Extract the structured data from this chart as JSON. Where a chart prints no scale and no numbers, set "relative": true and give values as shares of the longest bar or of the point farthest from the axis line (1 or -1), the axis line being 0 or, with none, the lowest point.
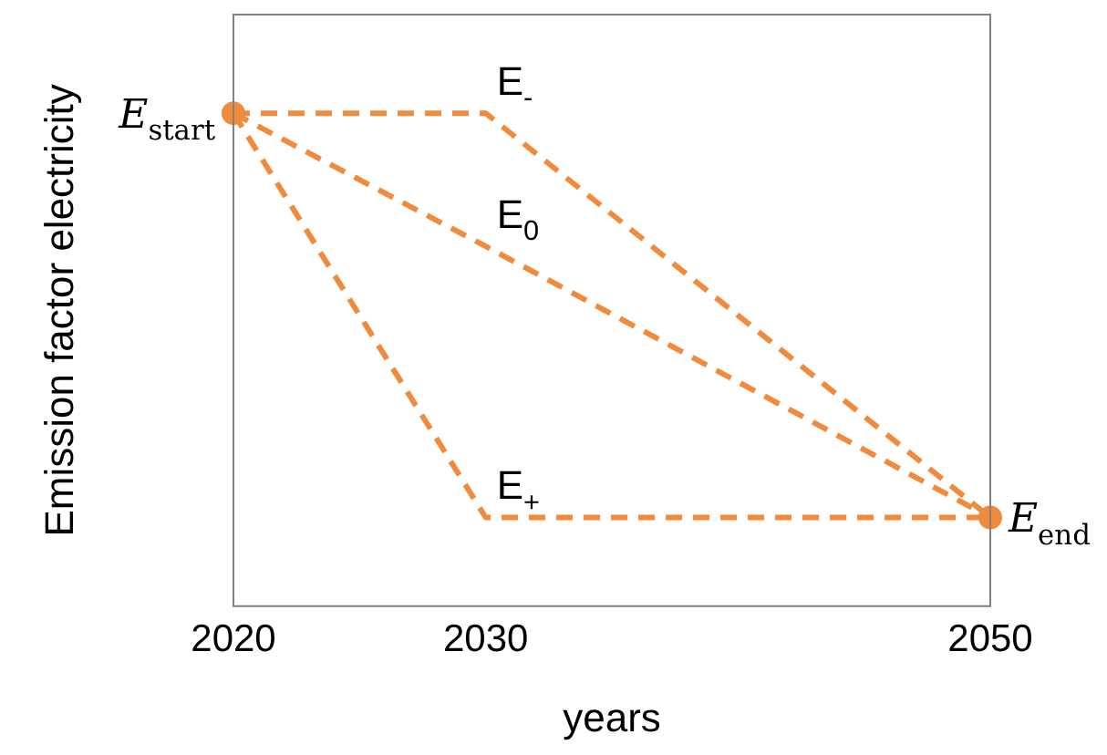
{
  "chart_data": {
    "type": "line",
    "relative": true,
    "xlabel": "years",
    "ylabel": "Emission factor electricity",
    "x": [
      2020,
      2030,
      2050
    ],
    "xlim": [
      2020,
      2050
    ],
    "xticks": [
      2020,
      2030,
      2050
    ],
    "series": [
      {
        "name": "E$_{-}$",
        "color": "#f08a3c",
        "values": [
          1,
          1,
          0.18
        ],
        "line_style": "dashed",
        "marker": "none"
      },
      {
        "name": "E$_{0}$",
        "color": "#f08a3c",
        "values": [
          1,
          0.73,
          0.18
        ],
        "line_style": "dashed",
        "marker": "none"
      },
      {
        "name": "E$_{+}$",
        "color": "#f08a3c",
        "values": [
          1,
          0.18,
          0.18
        ],
        "line_style": "dashed",
        "marker": "none"
      },
      {
        "type": "scatter",
        "color": "#f08a3c",
        "values": [
          1,
          null,
          0.18
        ],
        "marker": "circle"
      }
    ],
    "annotations": [
      {
        "text": "E$_{start}$",
        "x": 2020,
        "y": 1
      },
      {
        "text": "E$_{end}$",
        "x": 2050,
        "y": 0.18
      }
    ],
    "grid": false,
    "legend": false
  }
}
